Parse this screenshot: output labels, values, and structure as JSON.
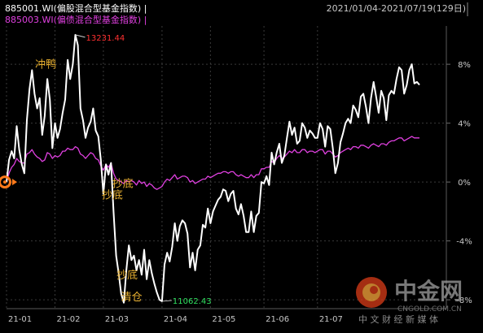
{
  "header": {
    "legend": [
      {
        "label": "885001.WI(偏股混合型基金指数) |",
        "color": "#ffffff"
      },
      {
        "label": "885003.WI(偏债混合型基金指数) |",
        "color": "#e040e0"
      }
    ],
    "date_range": "2021/01/04-2021/07/19(129日)"
  },
  "watermark": {
    "name": "中金网",
    "domain": "CNGOLD.COM.CN",
    "subtitle": "中 文 财 经 新 媒 体"
  },
  "chart_data": {
    "type": "line",
    "x_ticks": [
      "21-01",
      "21-02",
      "21-03",
      "21-04",
      "21-05",
      "21-06",
      "21-07"
    ],
    "y_ticks": [
      "8%",
      "4%",
      "0%",
      "-4%",
      "-8%"
    ],
    "y_tick_values": [
      8,
      4,
      0,
      -4,
      -8
    ],
    "ylim": [
      -8.6,
      10.6
    ],
    "grid": true,
    "legend_position": "top-left",
    "series": [
      {
        "name": "885001.WI(偏股混合型基金指数)",
        "color": "#ffffff",
        "values": [
          0.0,
          1.5,
          2.1,
          1.6,
          3.8,
          2.2,
          1.2,
          0.6,
          4.2,
          6.3,
          7.6,
          6.0,
          5.0,
          5.7,
          3.2,
          4.5,
          7.0,
          5.6,
          2.3,
          4.0,
          3.0,
          3.6,
          4.7,
          5.6,
          8.3,
          7.0,
          8.0,
          10.0,
          9.3,
          5.0,
          4.2,
          3.0,
          3.7,
          4.1,
          5.0,
          3.5,
          3.1,
          1.5,
          -0.8,
          1.2,
          0.5,
          1.3,
          -2.0,
          -5.0,
          -6.2,
          -7.6,
          -8.2,
          -6.0,
          -4.3,
          -5.3,
          -5.0,
          -6.0,
          -5.3,
          -6.3,
          -4.6,
          -6.6,
          -5.3,
          -6.2,
          -6.9,
          -7.5,
          -8.0,
          -8.1,
          -5.6,
          -4.8,
          -5.4,
          -4.4,
          -2.8,
          -4.0,
          -3.0,
          -2.6,
          -2.8,
          -3.5,
          -5.8,
          -4.8,
          -6.0,
          -4.6,
          -4.3,
          -2.9,
          -3.1,
          -1.8,
          -2.8,
          -2.0,
          -1.6,
          -1.2,
          -1.0,
          -0.5,
          -0.6,
          -1.3,
          -0.8,
          -0.6,
          -1.8,
          -2.2,
          -1.5,
          -2.3,
          -3.4,
          -3.4,
          -2.0,
          -3.4,
          -2.3,
          -2.1,
          0.0,
          -0.1,
          0.4,
          -0.2,
          2.0,
          1.2,
          2.0,
          2.6,
          1.3,
          1.8,
          3.0,
          4.1,
          3.2,
          3.7,
          2.6,
          2.8,
          4.0,
          3.7,
          3.0,
          3.5,
          3.3,
          3.0,
          3.0,
          4.0,
          3.6,
          2.4,
          3.8,
          3.6,
          2.3,
          0.6,
          1.3,
          2.7,
          3.3,
          4.0,
          4.3,
          4.0,
          5.2,
          4.9,
          4.4,
          5.8,
          6.0,
          5.1,
          4.0,
          5.7,
          6.8,
          5.8,
          4.7,
          6.2,
          5.7,
          4.2,
          5.9,
          6.2,
          6.0,
          7.0,
          7.8,
          7.6,
          6.0,
          6.6,
          7.6,
          8.0,
          6.7,
          6.8,
          6.6
        ]
      },
      {
        "name": "885003.WI(偏债混合型基金指数)",
        "color": "#e040e0",
        "values": [
          0.0,
          0.6,
          1.0,
          1.2,
          1.6,
          1.4,
          1.3,
          1.3,
          1.9,
          2.0,
          2.2,
          1.9,
          1.7,
          1.6,
          1.4,
          1.5,
          2.0,
          1.9,
          1.6,
          1.8,
          1.7,
          1.8,
          2.1,
          2.1,
          2.3,
          2.2,
          2.2,
          2.4,
          2.3,
          1.9,
          1.8,
          1.6,
          1.8,
          2.0,
          1.9,
          1.6,
          1.5,
          1.1,
          0.8,
          1.2,
          1.0,
          1.3,
          0.6,
          0.2,
          0.1,
          0.0,
          -0.1,
          0.1,
          0.0,
          0.1,
          0.0,
          -0.2,
          0.1,
          -0.1,
          0.0,
          -0.3,
          -0.1,
          -0.2,
          -0.4,
          -0.5,
          -0.4,
          -0.3,
          0.0,
          0.2,
          0.1,
          0.3,
          0.5,
          0.2,
          0.3,
          0.4,
          0.4,
          0.3,
          0.0,
          0.1,
          -0.1,
          0.0,
          0.1,
          0.2,
          0.2,
          0.4,
          0.3,
          0.4,
          0.5,
          0.6,
          0.6,
          0.7,
          0.7,
          0.6,
          0.7,
          0.7,
          0.5,
          0.4,
          0.5,
          0.4,
          0.3,
          0.3,
          0.5,
          0.3,
          0.5,
          0.5,
          0.9,
          0.9,
          1.0,
          1.0,
          1.4,
          1.3,
          1.6,
          1.8,
          1.6,
          1.7,
          1.9,
          2.1,
          2.0,
          2.2,
          2.0,
          2.0,
          2.2,
          2.2,
          2.0,
          2.1,
          2.1,
          2.0,
          2.1,
          2.2,
          2.2,
          1.9,
          2.1,
          2.1,
          1.9,
          1.7,
          1.8,
          2.0,
          2.1,
          2.2,
          2.3,
          2.2,
          2.4,
          2.4,
          2.3,
          2.5,
          2.5,
          2.4,
          2.3,
          2.5,
          2.6,
          2.5,
          2.4,
          2.6,
          2.6,
          2.5,
          2.7,
          2.8,
          2.8,
          2.9,
          3.0,
          3.0,
          2.8,
          2.9,
          3.0,
          3.1,
          3.0,
          3.0,
          3.0
        ]
      }
    ],
    "annotations": [
      {
        "text": "冲鸭",
        "index": 24,
        "value": 8.3
      },
      {
        "text": "抄底",
        "index": 38,
        "value": -0.8
      },
      {
        "text": "抄底",
        "index": 44,
        "value": 0.1
      },
      {
        "text": "抄底",
        "index": 47,
        "value": -6.0
      },
      {
        "text": "清仓",
        "index": 59,
        "value": -7.5
      }
    ],
    "extremes": [
      {
        "label": "13231.44",
        "index": 27,
        "value": 10.0,
        "color": "#ff3030"
      },
      {
        "label": "11062.43",
        "index": 61,
        "value": -8.1,
        "color": "#30e060"
      }
    ],
    "current_marker_value": 0.0
  }
}
